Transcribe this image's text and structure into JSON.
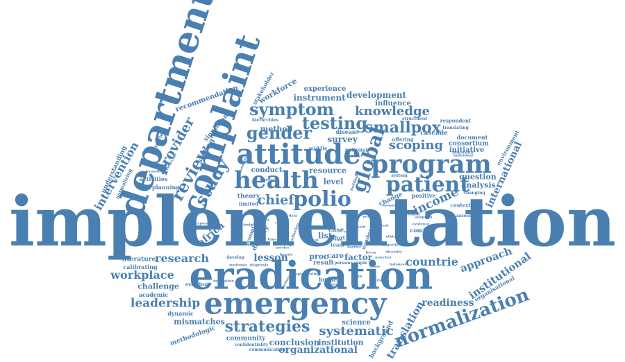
{
  "style": {
    "word_color": "#4a7fb1",
    "background": "#ffffff"
  },
  "words": {
    "implementation": "implementation",
    "eradication": "eradication",
    "emergency": "emergency",
    "department": "department",
    "complaint": "complaint",
    "attitude": "attitude",
    "program": "program",
    "health": "health",
    "patient": "patient",
    "polio": "polio",
    "global": "global",
    "strategies": "strategies",
    "normalization": "normalization",
    "symptom": "symptom",
    "testing": "testing",
    "smallpox": "smallpox",
    "knowledge": "knowledge",
    "gender": "gender",
    "scoping": "scoping",
    "review": "review",
    "study": "study",
    "provider": "provider",
    "intervention": "intervention",
    "research": "research",
    "workplace": "workplace",
    "leadership": "leadership",
    "systematic": "systematic",
    "organizational": "organizational",
    "translation": "translation",
    "institutional": "institutional",
    "readiness": "readiness",
    "approach": "approach",
    "countrie": "countrie",
    "income": "income",
    "international": "international",
    "chief": "chief",
    "lesson": "lesson",
    "africa": "africa",
    "conclusion": "conclusion",
    "challenge": "challenge",
    "mismatches": "mismatches",
    "methodologic": "methodologic",
    "community": "community",
    "institution": "institution",
    "science": "science",
    "background": "background",
    "instrument": "instrument",
    "development": "development",
    "experience": "experience",
    "influence": "influence",
    "workforce": "workforce",
    "recommendation": "recommendation",
    "stakeholder": "stakeholder",
    "method": "method",
    "survey": "survey",
    "resource": "resource",
    "conduct": "conduct",
    "level": "level",
    "question": "question",
    "analysis": "analysis",
    "initiative": "initiative",
    "consortium": "consortium",
    "document": "document",
    "cascade": "cascade",
    "setting": "setting",
    "significant": "significant",
    "understanding": "understanding",
    "normalizing": "normalizing",
    "activities": "activities",
    "planning": "planning",
    "interview": "interview",
    "literature": "literature",
    "calibrating": "calibrating",
    "academic": "academic",
    "dynamic": "dynamic",
    "evolving": "evolving",
    "theory": "theory",
    "limited": "limited",
    "proc": "proc",
    "care": "care",
    "factor": "factor",
    "list": "list",
    "case": "case",
    "effort": "effort",
    "result": "result",
    "burden": "burden",
    "change": "change",
    "positive": "positive",
    "comfort": "comfort",
    "context": "context",
    "environment": "environment",
    "organisational": "organisational",
    "disease": "disease",
    "national": "national",
    "respondent": "respondent",
    "structured": "structured",
    "translating": "translating",
    "offering": "offering",
    "delivery": "delivery",
    "team": "team",
    "system": "system",
    "adoption": "adoption",
    "changing": "changing",
    "confidentiality": "confidentiality",
    "communication": "communication",
    "middle": "middle",
    "assessing": "assessing",
    "evidence": "evidence",
    "woman": "woman",
    "indonesia": "indonesia",
    "sample": "sample",
    "person": "person",
    "variance": "variance",
    "diagnosis": "diagnosis",
    "innovation": "innovation",
    "synthesis": "synthesis",
    "develop": "develop",
    "prompt": "prompt",
    "number": "number",
    "hierarchies": "hierarchies",
    "country": "country",
    "service": "service",
    "female": "female",
    "management": "management",
    "researcher": "researcher",
    "household": "household",
    "exposure": "exposure",
    "insight": "insight",
    "democratic": "democratic",
    "individual": "individual",
    "ethiopia": "ethiopia",
    "barrier": "barrier",
    "tool": "tool",
    "marcher": "marcher",
    "majority": "majority",
    "diversity": "diversity",
    "successful": "successful",
    "coordination": "coordination",
    "lessons": "lessons",
    "time": "time",
    "building": "building",
    "hold": "hold",
    "local": "local",
    "ready": "ready",
    "role": "role",
    "efficient": "efficient",
    "implementing": "implementing",
    "workers": "workers",
    "trial": "trial",
    "process": "process",
    "public": "public",
    "mass": "mass",
    "cost": "cost",
    "ebola": "ebola",
    "data": "data",
    "focus": "focus",
    "gap": "gap"
  }
}
